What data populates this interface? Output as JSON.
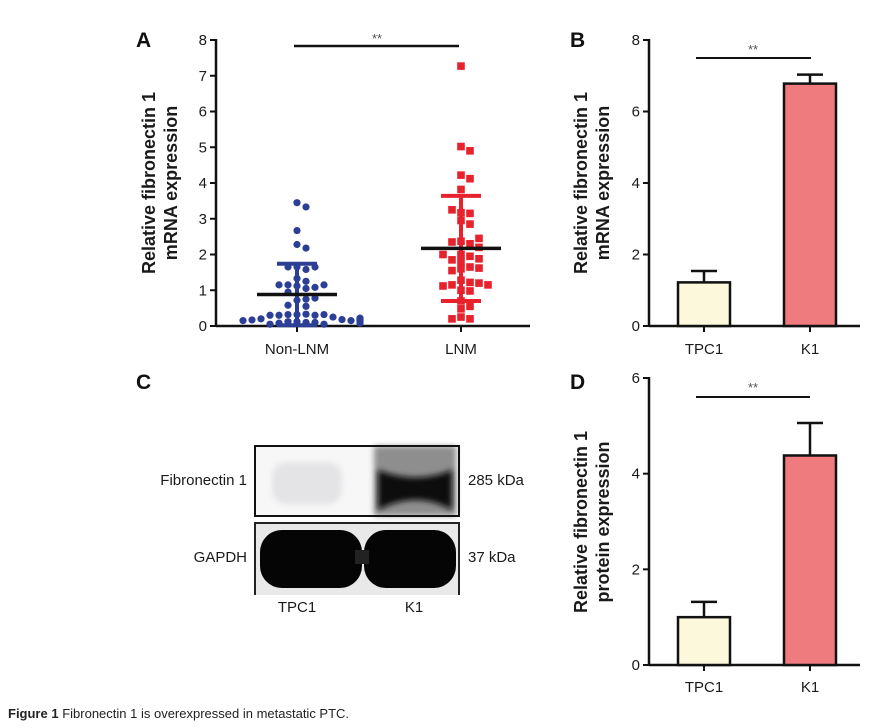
{
  "caption": {
    "label": "Figure 1",
    "text": "Fibronectin 1 is overexpressed in metastatic PTC."
  },
  "colors": {
    "non_lnm": "#2b3f96",
    "lnm": "#e8222c",
    "tpc1_bar": "#fbf8dc",
    "k1_bar": "#f07b7e",
    "axis": "#111111"
  },
  "chart_data": [
    {
      "panel": "A",
      "type": "scatter",
      "title": "",
      "xlabel": "",
      "ylabel": [
        "Relative fibronectin 1",
        "mRNA expression"
      ],
      "categories": [
        "Non-LNM",
        "LNM"
      ],
      "ylim": [
        0,
        8
      ],
      "yticks": [
        0,
        1,
        2,
        3,
        4,
        5,
        6,
        7,
        8
      ],
      "significance": "**",
      "series": [
        {
          "name": "Non-LNM",
          "marker": "circle",
          "mean": 0.88,
          "sd": 0.86,
          "values": [
            3.45,
            3.33,
            2.67,
            2.28,
            2.18,
            1.65,
            1.58,
            1.65,
            1.65,
            1.33,
            1.25,
            1.15,
            1.12,
            1.08,
            1.15,
            1.15,
            1.05,
            0.95,
            0.72,
            0.75,
            0.58,
            0.55,
            0.78,
            0.32,
            0.33,
            0.32,
            0.3,
            0.3,
            0.32,
            0.3,
            0.25,
            0.2,
            0.18,
            0.17,
            0.15,
            0.12,
            0.1,
            0.12,
            0.15,
            0.18,
            0.2,
            0.22,
            0.15,
            0.1,
            0.08,
            0.05,
            0.05,
            0.08
          ]
        },
        {
          "name": "LNM",
          "marker": "square",
          "mean": 2.17,
          "sd": 1.47,
          "values": [
            7.27,
            5.02,
            4.9,
            4.22,
            4.12,
            3.82,
            3.17,
            3.15,
            3.25,
            2.95,
            2.85,
            2.37,
            2.3,
            2.35,
            2.45,
            2.2,
            2.0,
            1.95,
            1.85,
            1.8,
            1.88,
            2.0,
            1.65,
            1.6,
            1.55,
            1.62,
            1.28,
            1.22,
            1.15,
            1.2,
            1.12,
            1.15,
            1.0,
            0.98,
            0.7,
            0.55,
            0.48,
            0.25,
            0.2,
            0.2
          ]
        }
      ]
    },
    {
      "panel": "B",
      "type": "bar",
      "title": "",
      "xlabel": "",
      "ylabel": [
        "Relative fibronectin 1",
        "mRNA expression"
      ],
      "categories": [
        "TPC1",
        "K1"
      ],
      "values": [
        1.22,
        6.78
      ],
      "errors": [
        0.32,
        0.25
      ],
      "ylim": [
        0,
        8
      ],
      "yticks": [
        0,
        2,
        4,
        6,
        8
      ],
      "significance": "**"
    },
    {
      "panel": "D",
      "type": "bar",
      "title": "",
      "xlabel": "",
      "ylabel": [
        "Relative fibronectin 1",
        "protein expression"
      ],
      "categories": [
        "TPC1",
        "K1"
      ],
      "values": [
        1.0,
        4.38
      ],
      "errors": [
        0.32,
        0.68
      ],
      "ylim": [
        0,
        6
      ],
      "yticks": [
        0,
        2,
        4,
        6
      ],
      "significance": "**"
    }
  ],
  "western_blot": {
    "panel": "C",
    "rows": [
      {
        "protein": "Fibronectin 1",
        "size": "285 kDa"
      },
      {
        "protein": "GAPDH",
        "size": "37 kDa"
      }
    ],
    "lanes": [
      "TPC1",
      "K1"
    ]
  }
}
